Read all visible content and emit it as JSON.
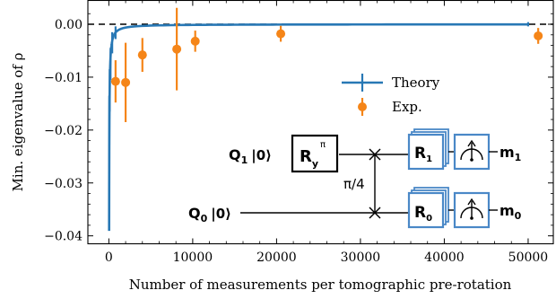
{
  "chart_data": {
    "type": "scatter",
    "title": "",
    "xlabel": "Number of measurements per tomographic pre-rotation",
    "ylabel": "Min. eigenvalue of ρ",
    "xlim": [
      -2500,
      53000
    ],
    "ylim": [
      -0.0415,
      0.0045
    ],
    "xticks": [
      0,
      10000,
      20000,
      30000,
      40000,
      50000
    ],
    "xtick_labels": [
      "0",
      "10000",
      "20000",
      "30000",
      "40000",
      "50000"
    ],
    "yticks": [
      -0.04,
      -0.03,
      -0.02,
      -0.01,
      0.0
    ],
    "ytick_labels": [
      "−0.04",
      "−0.03",
      "−0.02",
      "−0.01",
      "0.00"
    ],
    "reference_line": {
      "y": 0.0,
      "style": "dashed",
      "color": "#000000"
    },
    "grid": false,
    "legend": {
      "placement": "center-right",
      "entries": [
        {
          "label": "Theory",
          "color": "#2878b5",
          "marker": "line-with-errorbar"
        },
        {
          "label": "Exp.",
          "color": "#f58518",
          "marker": "dot-with-errorbar"
        }
      ]
    },
    "series": [
      {
        "name": "Theory",
        "kind": "curve",
        "color": "#2878b5",
        "model": "y = -1.25 / x",
        "x_range": [
          32,
          50000
        ],
        "error_bars": [
          {
            "x": 50,
            "y": -0.0255,
            "err": 0.012
          },
          {
            "x": 100,
            "y": -0.0125,
            "err": 0.004
          },
          {
            "x": 200,
            "y": -0.0075,
            "err": 0.003
          },
          {
            "x": 400,
            "y": -0.0035,
            "err": 0.002
          },
          {
            "x": 800,
            "y": -0.0016,
            "err": 0.0012
          },
          {
            "x": 50000,
            "y": 0.0,
            "err": 0.0004
          }
        ]
      },
      {
        "name": "Exp.",
        "kind": "points",
        "color": "#f58518",
        "points": [
          {
            "x": 800,
            "y": -0.0108,
            "err": 0.004
          },
          {
            "x": 2000,
            "y": -0.011,
            "err": 0.0075
          },
          {
            "x": 4000,
            "y": -0.0058,
            "err": 0.0032
          },
          {
            "x": 8100,
            "y": -0.0047,
            "err": 0.0078
          },
          {
            "x": 10300,
            "y": -0.0032,
            "err": 0.002
          },
          {
            "x": 20500,
            "y": -0.0018,
            "err": 0.0015
          },
          {
            "x": 51200,
            "y": -0.0022,
            "err": 0.0015
          }
        ]
      }
    ]
  },
  "circuit": {
    "qubits": [
      {
        "label": "Q",
        "sub": "1",
        "state": "|0⟩",
        "gate": "R",
        "gate_sub": "y",
        "gate_sup": "π",
        "rot": "R",
        "rot_sub": "1",
        "meas": "m",
        "meas_sub": "1"
      },
      {
        "label": "Q",
        "sub": "0",
        "state": "|0⟩",
        "gate": "",
        "gate_sub": "",
        "gate_sup": "",
        "rot": "R",
        "rot_sub": "0",
        "meas": "m",
        "meas_sub": "0"
      }
    ],
    "swap_label": "π/4",
    "box_color": "#4a88c7"
  }
}
